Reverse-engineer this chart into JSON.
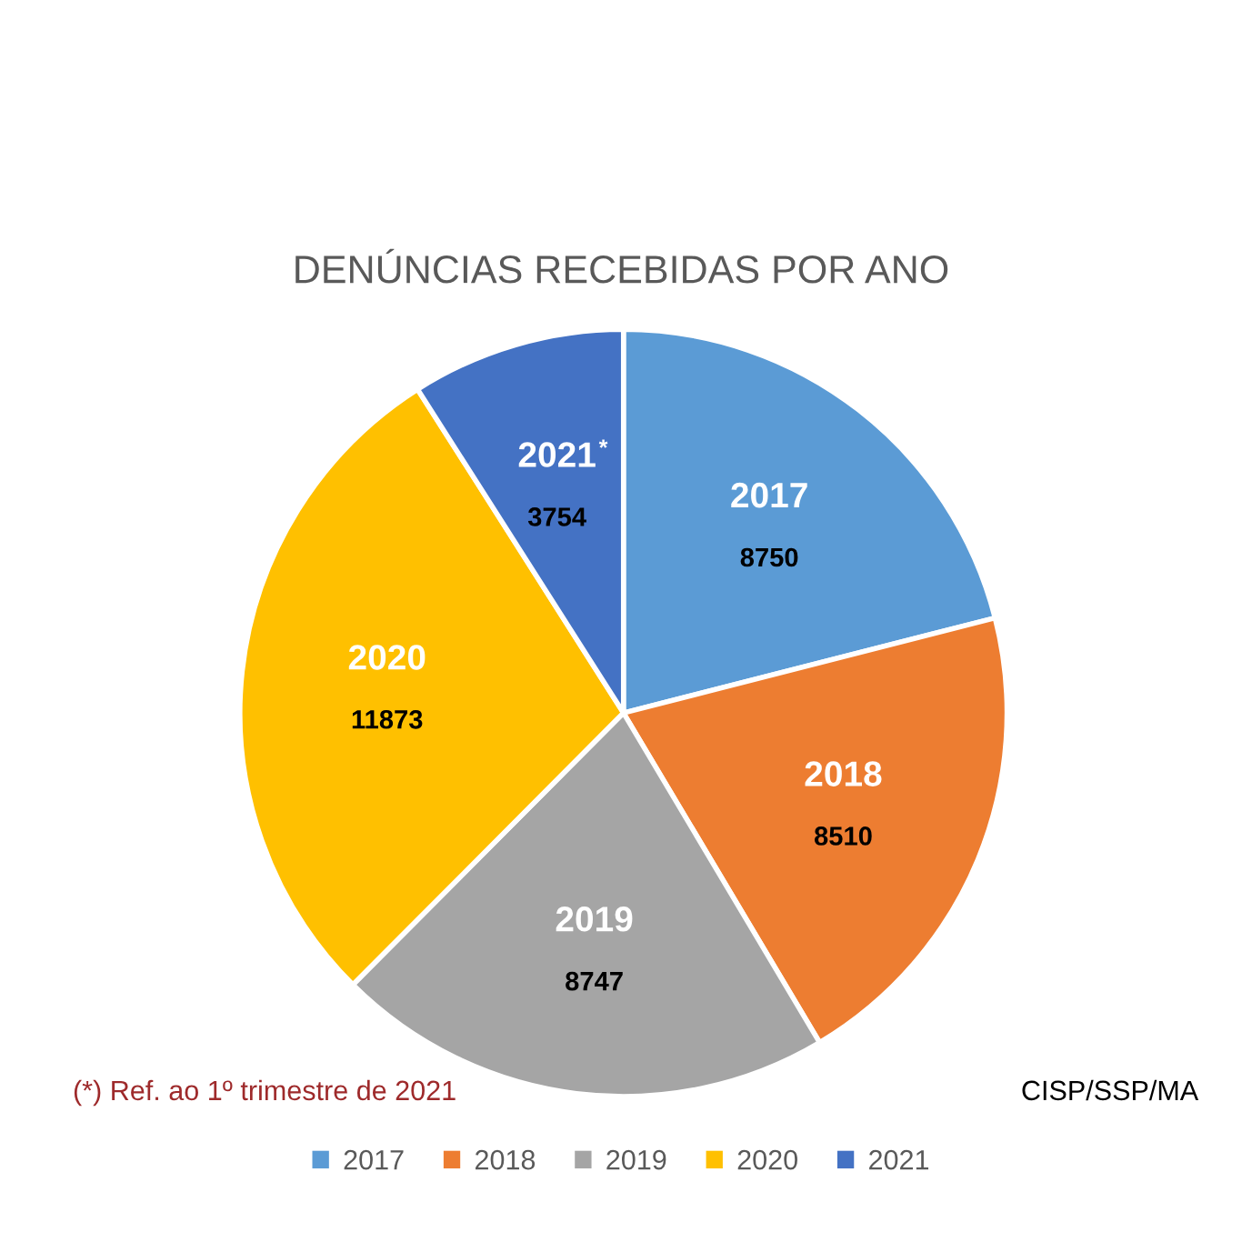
{
  "chart_data": {
    "type": "pie",
    "title": "DENÚNCIAS RECEBIDAS POR ANO",
    "categories": [
      "2017",
      "2018",
      "2019",
      "2020",
      "2021"
    ],
    "values": [
      8750,
      8510,
      8747,
      11873,
      3754
    ],
    "colors": [
      "#5b9bd5",
      "#ed7d31",
      "#a5a5a5",
      "#ffc000",
      "#4472c4"
    ],
    "data_labels": true,
    "legend": "bottom",
    "annotations": [
      "*",
      "(*) Ref. ao 1º trimestre de 2021",
      "CISP/SSP/MA"
    ]
  }
}
